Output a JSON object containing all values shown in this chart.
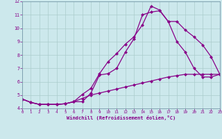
{
  "title": "",
  "xlabel": "Windchill (Refroidissement éolien,°C)",
  "bg_color": "#cce8ec",
  "line_color": "#880088",
  "grid_color": "#aacccc",
  "xlim": [
    0,
    23
  ],
  "ylim": [
    4,
    12
  ],
  "yticks": [
    4,
    5,
    6,
    7,
    8,
    9,
    10,
    11,
    12
  ],
  "xticks": [
    0,
    1,
    2,
    3,
    4,
    5,
    6,
    7,
    8,
    9,
    10,
    11,
    12,
    13,
    14,
    15,
    16,
    17,
    18,
    19,
    20,
    21,
    22,
    23
  ],
  "curve_upper_x": [
    0,
    1,
    2,
    3,
    4,
    5,
    6,
    7,
    8,
    9,
    10,
    11,
    12,
    13,
    14,
    15,
    16,
    17,
    18,
    19,
    20,
    21,
    22,
    23
  ],
  "curve_upper_y": [
    4.7,
    4.45,
    4.3,
    4.3,
    4.3,
    4.35,
    4.5,
    5.05,
    5.5,
    6.6,
    7.5,
    8.1,
    8.8,
    9.35,
    10.25,
    11.65,
    11.35,
    10.5,
    10.5,
    9.85,
    9.35,
    8.75,
    7.85,
    6.55
  ],
  "curve_mid_x": [
    0,
    1,
    2,
    3,
    4,
    5,
    6,
    7,
    8,
    9,
    10,
    11,
    12,
    13,
    14,
    15,
    16,
    17,
    18,
    19,
    20,
    21,
    22,
    23
  ],
  "curve_mid_y": [
    4.7,
    4.45,
    4.3,
    4.3,
    4.3,
    4.35,
    4.5,
    4.5,
    5.15,
    6.5,
    6.6,
    7.0,
    8.2,
    9.2,
    11.0,
    11.2,
    11.3,
    10.5,
    9.0,
    8.2,
    7.0,
    6.35,
    6.35,
    6.55
  ],
  "curve_lower_x": [
    0,
    1,
    2,
    3,
    4,
    5,
    6,
    7,
    8,
    9,
    10,
    11,
    12,
    13,
    14,
    15,
    16,
    17,
    18,
    19,
    20,
    21,
    22,
    23
  ],
  "curve_lower_y": [
    4.7,
    4.45,
    4.3,
    4.3,
    4.3,
    4.35,
    4.5,
    4.75,
    5.0,
    5.15,
    5.3,
    5.45,
    5.6,
    5.75,
    5.9,
    6.05,
    6.2,
    6.35,
    6.45,
    6.55,
    6.55,
    6.55,
    6.55,
    6.55
  ],
  "markersize": 2.5,
  "linewidth": 0.9
}
